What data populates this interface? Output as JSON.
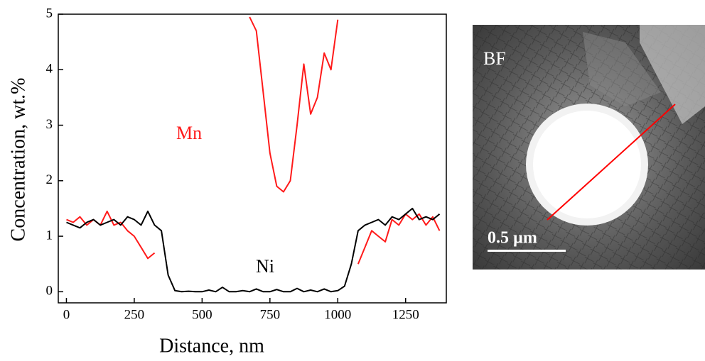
{
  "chart_data": {
    "type": "line",
    "x_label": "Distance, nm",
    "y_label": "Concentration, wt.%",
    "x": [
      0,
      25,
      50,
      75,
      100,
      125,
      150,
      175,
      200,
      225,
      250,
      275,
      300,
      325,
      350,
      375,
      400,
      425,
      450,
      475,
      500,
      525,
      550,
      575,
      600,
      625,
      650,
      675,
      700,
      725,
      750,
      775,
      800,
      825,
      850,
      875,
      900,
      925,
      950,
      975,
      1000,
      1025,
      1050,
      1075,
      1100,
      1125,
      1150,
      1175,
      1200,
      1225,
      1250,
      1275,
      1300,
      1325,
      1350,
      1375
    ],
    "series": [
      {
        "name": "Mn",
        "color": "#ff1a1a",
        "values": [
          1.3,
          1.25,
          1.35,
          1.2,
          1.3,
          1.2,
          1.45,
          1.2,
          1.25,
          1.1,
          1.0,
          0.8,
          0.6,
          0.7,
          null,
          null,
          null,
          null,
          null,
          null,
          null,
          null,
          null,
          null,
          null,
          null,
          null,
          4.95,
          4.7,
          3.6,
          2.5,
          1.9,
          1.8,
          2.0,
          3.0,
          4.1,
          3.2,
          3.5,
          4.3,
          4.0,
          4.9,
          null,
          null,
          0.5,
          0.8,
          1.1,
          1.0,
          0.9,
          1.3,
          1.2,
          1.4,
          1.3,
          1.4,
          1.2,
          1.35,
          1.1
        ]
      },
      {
        "name": "Ni",
        "color": "#000000",
        "values": [
          1.25,
          1.2,
          1.15,
          1.25,
          1.3,
          1.2,
          1.25,
          1.3,
          1.2,
          1.35,
          1.3,
          1.2,
          1.45,
          1.2,
          1.1,
          0.3,
          0.02,
          0,
          0.01,
          0,
          0,
          0.03,
          0,
          0.08,
          0,
          0,
          0.02,
          0,
          0.05,
          0,
          0,
          0.04,
          0,
          0,
          0.06,
          0,
          0.03,
          0,
          0.05,
          0,
          0.02,
          0.1,
          0.5,
          1.1,
          1.2,
          1.25,
          1.3,
          1.2,
          1.35,
          1.3,
          1.4,
          1.5,
          1.3,
          1.35,
          1.3,
          1.4
        ]
      }
    ],
    "xlim": [
      -30,
      1400
    ],
    "ylim": [
      -0.2,
      5
    ],
    "xticks": [
      0,
      250,
      500,
      750,
      1000,
      1250
    ],
    "yticks": [
      0,
      1,
      2,
      3,
      4,
      5
    ]
  },
  "micrograph": {
    "label": "BF",
    "scale_bar": "0.5 µm"
  }
}
